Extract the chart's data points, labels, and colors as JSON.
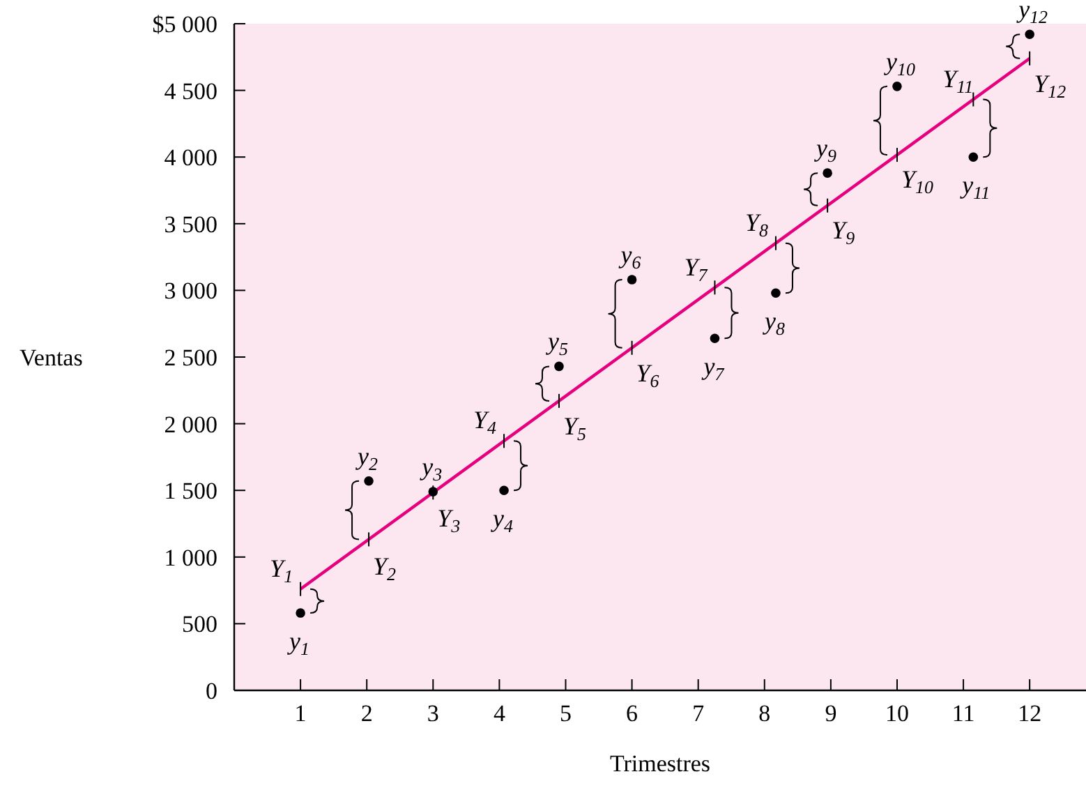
{
  "chart_data": {
    "type": "scatter",
    "xlabel": "Trimestres",
    "ylabel": "Ventas",
    "xlim": [
      0,
      12.85
    ],
    "ylim": [
      0,
      5000
    ],
    "xticks": [
      1,
      2,
      3,
      4,
      5,
      6,
      7,
      8,
      9,
      10,
      11,
      12
    ],
    "yticks": [
      0,
      {
        "value": 500,
        "label": "500"
      },
      {
        "value": 1000,
        "label": "1 000"
      },
      {
        "value": 1500,
        "label": "1 500"
      },
      {
        "value": 2000,
        "label": "2 000"
      },
      {
        "value": 2500,
        "label": "2 500"
      },
      {
        "value": 3000,
        "label": "3 000"
      },
      {
        "value": 3500,
        "label": "3 500"
      },
      {
        "value": 4000,
        "label": "4 000"
      },
      {
        "value": 4500,
        "label": "4 500"
      },
      {
        "value": 5000,
        "label": "$5 000"
      }
    ],
    "grid": false,
    "marker": "circle",
    "series": [
      {
        "color": "#000000",
        "x": [
          1,
          2.03,
          3,
          4.07,
          4.9,
          6,
          7.25,
          8.17,
          8.95,
          10,
          11.15,
          12
        ],
        "values": [
          580,
          1570,
          1490,
          1500,
          2430,
          3080,
          2640,
          2980,
          3880,
          4530,
          4000,
          4920
        ]
      },
      {
        "type": "line",
        "color": "#e6007e",
        "x": [
          1,
          12
        ],
        "values": [
          760,
          4740
        ],
        "line_style": "solid",
        "marker": "none"
      }
    ],
    "annotations": [
      {
        "text": "y$_{1}$",
        "x": 1,
        "y": 580
      },
      {
        "text": "y$_{2}$",
        "x": 2.03,
        "y": 1570
      },
      {
        "text": "y$_{3}$",
        "x": 3,
        "y": 1490
      },
      {
        "text": "y$_{4}$",
        "x": 4.07,
        "y": 1500
      },
      {
        "text": "y$_{5}$",
        "x": 4.9,
        "y": 2430
      },
      {
        "text": "y$_{6}$",
        "x": 6,
        "y": 3080
      },
      {
        "text": "y$_{7}$",
        "x": 7.25,
        "y": 2640
      },
      {
        "text": "y$_{8}$",
        "x": 8.17,
        "y": 2980
      },
      {
        "text": "y$_{9}$",
        "x": 8.95,
        "y": 3880
      },
      {
        "text": "y$_{10}$",
        "x": 10,
        "y": 4530
      },
      {
        "text": "y$_{11}$",
        "x": 11.15,
        "y": 4000
      },
      {
        "text": "y$_{12}$",
        "x": 12,
        "y": 4920
      },
      {
        "text": "Y$_{1}$",
        "x": 1,
        "y": 760
      },
      {
        "text": "Y$_{2}$",
        "x": 2.03,
        "y": 1120
      },
      {
        "text": "Y$_{3}$",
        "x": 3,
        "y": 1480
      },
      {
        "text": "Y$_{4}$",
        "x": 4.07,
        "y": 1870
      },
      {
        "text": "Y$_{5}$",
        "x": 4.9,
        "y": 2170
      },
      {
        "text": "Y$_{6}$",
        "x": 6,
        "y": 2570
      },
      {
        "text": "Y$_{7}$",
        "x": 7.25,
        "y": 3020
      },
      {
        "text": "Y$_{8}$",
        "x": 8.17,
        "y": 3350
      },
      {
        "text": "Y$_{9}$",
        "x": 8.95,
        "y": 3640
      },
      {
        "text": "Y$_{10}$",
        "x": 10,
        "y": 4020
      },
      {
        "text": "Y$_{11}$",
        "x": 11.15,
        "y": 4430
      },
      {
        "text": "Y$_{12}$",
        "x": 12,
        "y": 4740
      }
    ]
  }
}
